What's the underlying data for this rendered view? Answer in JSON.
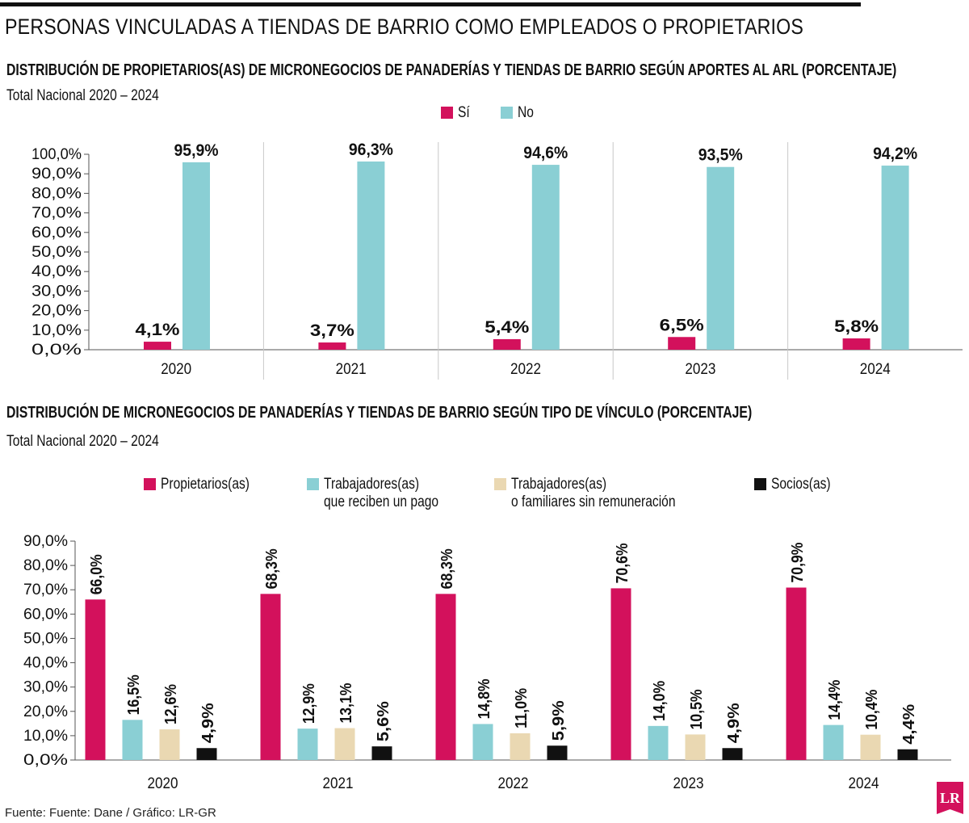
{
  "title": "PERSONAS VINCULADAS A TIENDAS DE BARRIO COMO EMPLEADOS O PROPIETARIOS",
  "source": "Fuente: Fuente: Dane / Gráfico: LR-GR",
  "logo": "LR",
  "colors": {
    "pink": "#d3115c",
    "cyan": "#8acfd4",
    "beige": "#ead8b2",
    "black": "#111111"
  },
  "chart_data": [
    {
      "type": "bar",
      "title": "DISTRIBUCIÓN DE PROPIETARIOS(AS) DE MICRONEGOCIOS DE PANADERÍAS Y TIENDAS DE BARRIO SEGÚN APORTES AL ARL (PORCENTAJE)",
      "subtitle": "Total Nacional 2020 – 2024",
      "categories": [
        "2020",
        "2021",
        "2022",
        "2023",
        "2024"
      ],
      "series": [
        {
          "name": "Sí",
          "color": "#d3115c",
          "values": [
            4.1,
            3.7,
            5.4,
            6.5,
            5.8
          ],
          "labels": [
            "4,1%",
            "3,7%",
            "5,4%",
            "6,5%",
            "5,8%"
          ]
        },
        {
          "name": "No",
          "color": "#8acfd4",
          "values": [
            95.9,
            96.3,
            94.6,
            93.5,
            94.2
          ],
          "labels": [
            "95,9%",
            "96,3%",
            "94,6%",
            "93,5%",
            "94,2%"
          ]
        }
      ],
      "yticks": [
        "0,0%",
        "10,0%",
        "20,0%",
        "30,0%",
        "40,0%",
        "50,0%",
        "60,0%",
        "70,0%",
        "80,0%",
        "90,0%",
        "100,0%"
      ],
      "ylim": [
        0,
        100
      ],
      "legend": "top-center",
      "grid": false
    },
    {
      "type": "bar",
      "title": "DISTRIBUCIÓN DE MICRONEGOCIOS DE PANADERÍAS Y TIENDAS DE BARRIO SEGÚN TIPO DE VÍNCULO (PORCENTAJE)",
      "subtitle": "Total Nacional 2020 – 2024",
      "categories": [
        "2020",
        "2021",
        "2022",
        "2023",
        "2024"
      ],
      "series": [
        {
          "name": "Propietarios(as)",
          "color": "#d3115c",
          "values": [
            66.0,
            68.3,
            68.3,
            70.6,
            70.9
          ],
          "labels": [
            "66,0%",
            "68,3%",
            "68,3%",
            "70,6%",
            "70,9%"
          ]
        },
        {
          "name": "Trabajadores(as)\nque reciben un pago",
          "color": "#8acfd4",
          "values": [
            16.5,
            12.9,
            14.8,
            14.0,
            14.4
          ],
          "labels": [
            "16,5%",
            "12,9%",
            "14,8%",
            "14,0%",
            "14,4%"
          ]
        },
        {
          "name": "Trabajadores(as)\no familiares sin remuneración",
          "color": "#ead8b2",
          "values": [
            12.6,
            13.1,
            11.0,
            10.5,
            10.4
          ],
          "labels": [
            "12,6%",
            "13,1%",
            "11,0%",
            "10,5%",
            "10,4%"
          ]
        },
        {
          "name": "Socios(as)",
          "color": "#111111",
          "values": [
            4.9,
            5.6,
            5.9,
            4.9,
            4.4
          ],
          "labels": [
            "4,9%",
            "5,6%",
            "5,9%",
            "4,9%",
            "4,4%"
          ]
        }
      ],
      "yticks": [
        "0,0%",
        "10,0%",
        "20,0%",
        "30,0%",
        "40,0%",
        "50,0%",
        "60,0%",
        "70,0%",
        "80,0%",
        "90,0%"
      ],
      "ylim": [
        0,
        90
      ],
      "legend": "top",
      "grid": false
    }
  ]
}
